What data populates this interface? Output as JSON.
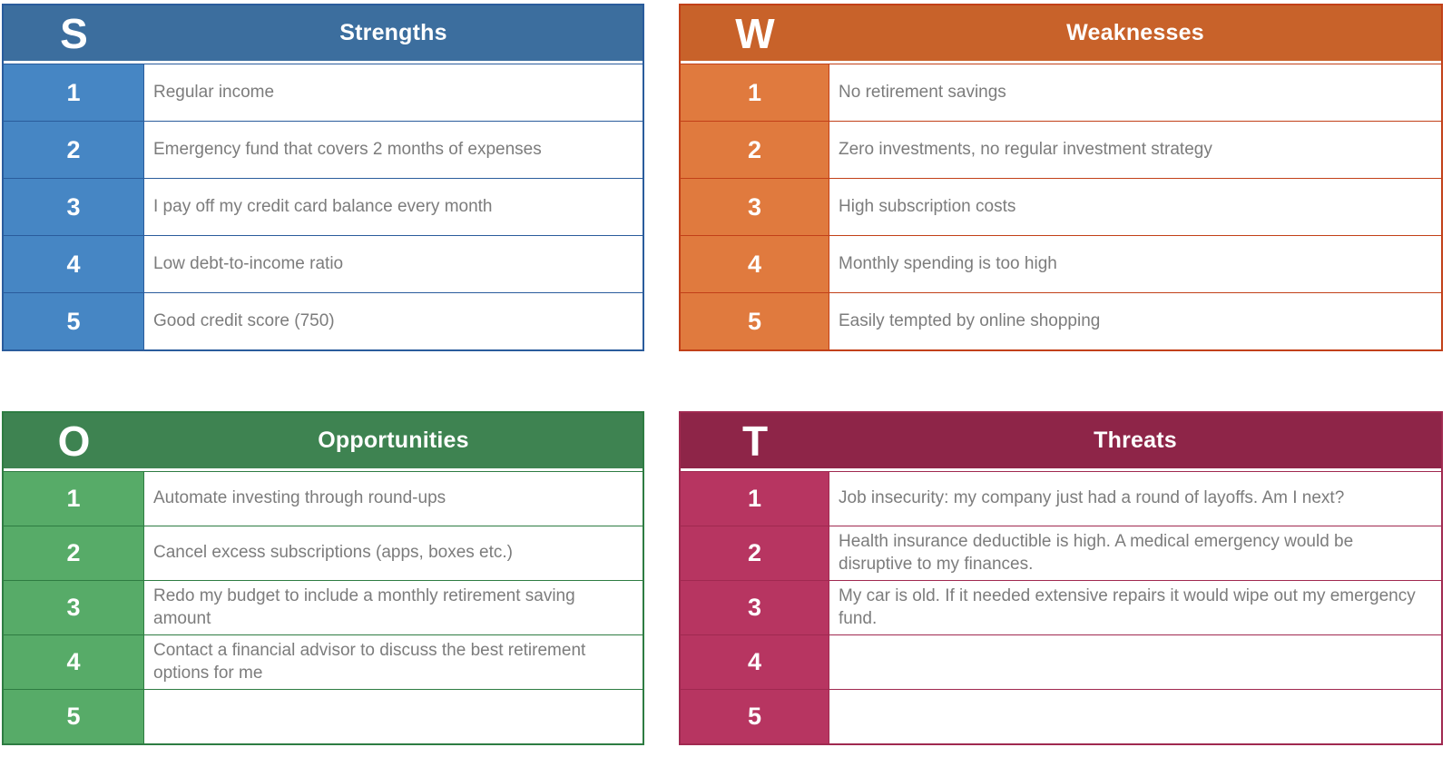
{
  "page": {
    "background": "#ffffff",
    "body_text_color": "#7C7C7C"
  },
  "quadrants": [
    {
      "id": "strengths",
      "letter": "S",
      "title": "Strengths",
      "colors": {
        "header": "#3C6E9E",
        "cell": "#4686C4",
        "sep": "#2A5C9C"
      },
      "rows": [
        {
          "num": "1",
          "text": "Regular income"
        },
        {
          "num": "2",
          "text": "Emergency fund that covers 2 months of expenses"
        },
        {
          "num": "3",
          "text": "I pay off my credit card balance every month"
        },
        {
          "num": "4",
          "text": "Low debt-to-income ratio"
        },
        {
          "num": "5",
          "text": "Good credit score (750)"
        }
      ]
    },
    {
      "id": "weaknesses",
      "letter": "W",
      "title": "Weaknesses",
      "colors": {
        "header": "#C8622A",
        "cell": "#E07A3E",
        "sep": "#C24018"
      },
      "rows": [
        {
          "num": "1",
          "text": "No retirement savings"
        },
        {
          "num": "2",
          "text": "Zero investments, no regular investment strategy"
        },
        {
          "num": "3",
          "text": "High subscription costs"
        },
        {
          "num": "4",
          "text": "Monthly spending is too high"
        },
        {
          "num": "5",
          "text": "Easily tempted by online shopping"
        }
      ]
    },
    {
      "id": "opportunities",
      "letter": "O",
      "title": "Opportunities",
      "colors": {
        "header": "#3E8351",
        "cell": "#57AB68",
        "sep": "#2E7C42"
      },
      "rows": [
        {
          "num": "1",
          "text": "Automate investing through round-ups"
        },
        {
          "num": "2",
          "text": "Cancel excess subscriptions (apps, boxes etc.)"
        },
        {
          "num": "3",
          "text": "Redo my budget to include a monthly retirement saving amount"
        },
        {
          "num": "4",
          "text": "Contact a financial advisor to discuss the best retirement options for me"
        },
        {
          "num": "5",
          "text": ""
        }
      ]
    },
    {
      "id": "threats",
      "letter": "T",
      "title": "Threats",
      "colors": {
        "header": "#8E2548",
        "cell": "#B73561",
        "sep": "#A02950"
      },
      "rows": [
        {
          "num": "1",
          "text": "Job insecurity: my company just had a round of layoffs. Am I next?"
        },
        {
          "num": "2",
          "text": "Health insurance deductible is high. A medical emergency would be disruptive to my finances."
        },
        {
          "num": "3",
          "text": "My car is old. If it needed extensive repairs it would wipe out my emergency fund."
        },
        {
          "num": "4",
          "text": ""
        },
        {
          "num": "5",
          "text": ""
        }
      ]
    }
  ]
}
